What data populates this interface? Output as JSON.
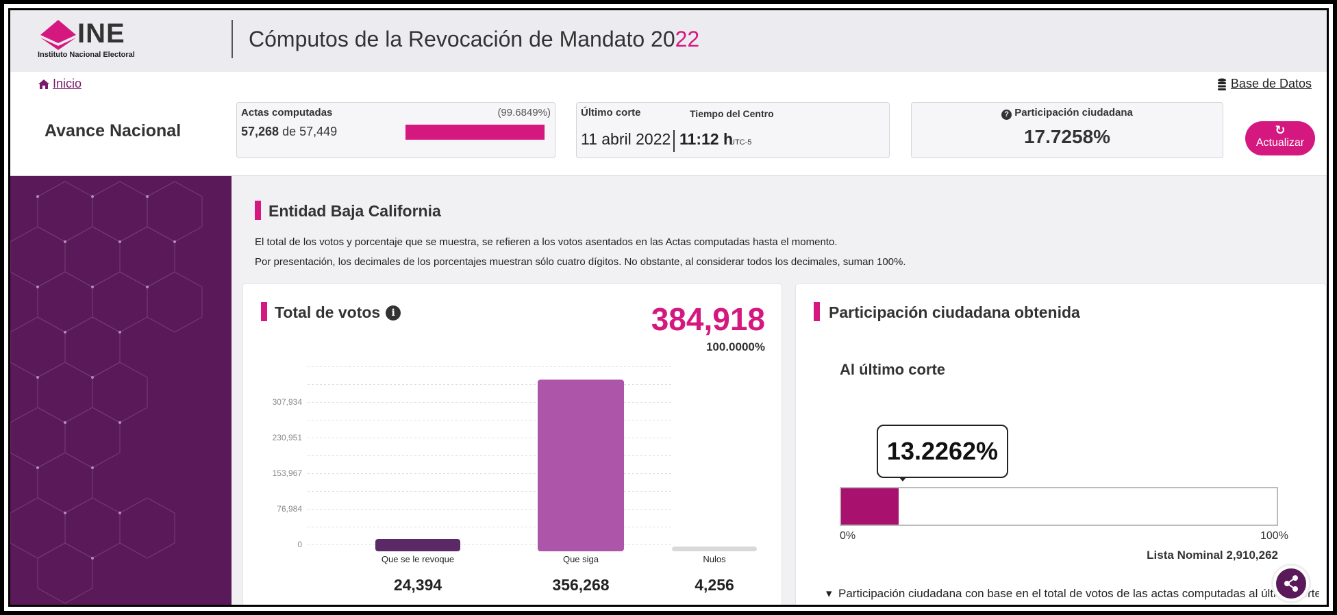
{
  "header": {
    "logo_big": "INE",
    "logo_small": "Instituto Nacional Electoral",
    "title_main": "Cómputos de la Revocación de Mandato 20",
    "title_accent": "22"
  },
  "nav": {
    "home": "Inicio",
    "database": "Base de Datos"
  },
  "avance": {
    "title": "Avance Nacional",
    "actas_label": "Actas computadas",
    "actas_pct": "(99.6849%)",
    "actas_done": "57,268",
    "actas_of": "de",
    "actas_total": "57,449",
    "actas_fraction": 0.996849,
    "corte_label": "Último corte",
    "tz_label": "Tiempo del Centro",
    "corte_date": "11 abril 2022",
    "corte_time": "11:12 h",
    "corte_tz": "UTC-5",
    "participacion_label": "Participación ciudadana",
    "participacion_value": "17.7258%",
    "refresh": "Actualizar"
  },
  "entity": {
    "title": "Entidad Baja California",
    "note1": "El total de los votos y porcentaje que se muestra, se refieren a los votos asentados en las Actas computadas hasta el momento.",
    "note2": "Por presentación, los decimales de los porcentajes muestran sólo cuatro dígitos. No obstante, al considerar todos los decimales, suman 100%."
  },
  "votes": {
    "title": "Total de votos",
    "total": "384,918",
    "total_pct": "100.0000%"
  },
  "chart_data": {
    "type": "bar",
    "categories": [
      "Que se le revoque",
      "Que siga",
      "Nulos"
    ],
    "values": [
      24394,
      356268,
      4256
    ],
    "value_labels": [
      "24,394",
      "356,268",
      "4,256"
    ],
    "colors": [
      "#5b2a66",
      "#ad55a8",
      "#d9d9d9"
    ],
    "yticks": [
      "0",
      "76,984",
      "153,967",
      "230,951",
      "307,934"
    ],
    "ytick_values": [
      0,
      76984,
      153967,
      230951,
      307934
    ],
    "ylim": [
      0,
      384918
    ],
    "grid": true
  },
  "participacion": {
    "title": "Participación ciudadana obtenida",
    "subtitle": "Al último corte",
    "value": "13.2262%",
    "fraction": 0.132262,
    "min_label": "0%",
    "max_label": "100%",
    "lista_nominal": "Lista Nominal 2,910,262",
    "note": "Participación ciudadana con base en el total de votos de las actas computadas al último corte."
  },
  "colors": {
    "accent": "#d5187f",
    "purple": "#5a1a5a"
  }
}
